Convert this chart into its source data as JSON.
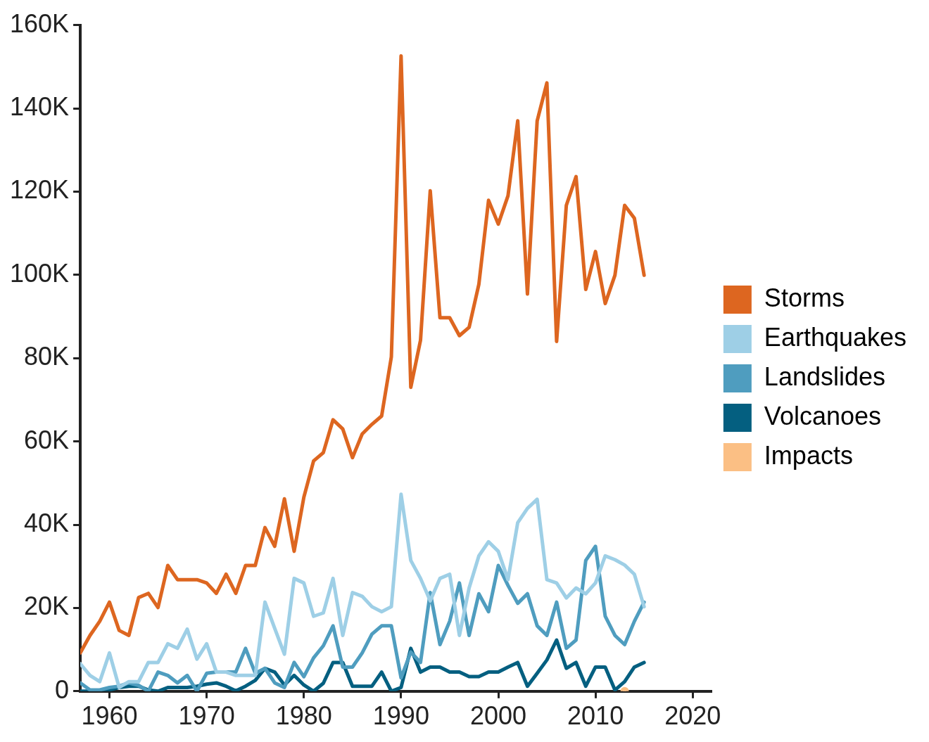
{
  "chart_data": {
    "type": "line",
    "x": [
      1957,
      1958,
      1959,
      1960,
      1961,
      1962,
      1963,
      1964,
      1965,
      1966,
      1967,
      1968,
      1969,
      1970,
      1971,
      1972,
      1973,
      1974,
      1975,
      1976,
      1977,
      1978,
      1979,
      1980,
      1981,
      1982,
      1983,
      1984,
      1985,
      1986,
      1987,
      1988,
      1989,
      1990,
      1991,
      1992,
      1993,
      1994,
      1995,
      1996,
      1997,
      1998,
      1999,
      2000,
      2001,
      2002,
      2003,
      2004,
      2005,
      2006,
      2007,
      2008,
      2009,
      2010,
      2011,
      2012,
      2013,
      2014,
      2015
    ],
    "series": [
      {
        "name": "Storms",
        "color": "#dd6620",
        "values": [
          9.2,
          13.4,
          16.8,
          21.4,
          14.6,
          13.4,
          22.5,
          23.5,
          20.1,
          30.2,
          26.8,
          26.8,
          26.8,
          26.0,
          23.5,
          28.1,
          23.5,
          30.2,
          30.2,
          39.3,
          34.8,
          46.2,
          33.6,
          46.6,
          55.3,
          57.3,
          65.2,
          63.0,
          56.1,
          61.8,
          64.1,
          66.1,
          80.3,
          152.6,
          73,
          84.3,
          120.2,
          89.7,
          89.7,
          85.4,
          87.4,
          97.7,
          117.9,
          112.2,
          119.0,
          137.0,
          95.4,
          137.0,
          146.1,
          84.0,
          116.7,
          123.6,
          96.5,
          105.6,
          93.1,
          99.9,
          116.7,
          113.6,
          99.9
        ]
      },
      {
        "name": "Earthquakes",
        "color": "#9ecfe6",
        "values": [
          6.6,
          3.8,
          2.3,
          9.2,
          0.9,
          2.3,
          2.3,
          6.9,
          6.9,
          11.4,
          10.3,
          14.9,
          7.7,
          11.4,
          4.6,
          4.6,
          3.8,
          3.8,
          3.8,
          21.4,
          15.1,
          8.9,
          27.1,
          26.0,
          18.0,
          18.8,
          27.1,
          13.4,
          23.7,
          22.8,
          20.3,
          19.1,
          20.3,
          47.3,
          31.4,
          27.1,
          21.7,
          27.1,
          28.1,
          13.4,
          24.8,
          32.5,
          35.9,
          33.6,
          26.8,
          40.5,
          43.9,
          46.1,
          26.8,
          26.0,
          22.4,
          24.8,
          23.4,
          26.0,
          32.5,
          31.6,
          30.3,
          28.1,
          20.3
        ]
      },
      {
        "name": "Landslides",
        "color": "#4f9dbf",
        "values": [
          2.0,
          0.3,
          0.3,
          0.9,
          1.2,
          2.0,
          1.4,
          0,
          4.6,
          3.8,
          2.0,
          3.8,
          0,
          4.3,
          4.6,
          4.6,
          4.6,
          10.3,
          4.3,
          5.5,
          2.0,
          0.9,
          6.9,
          3.5,
          8.0,
          10.9,
          15.7,
          5.8,
          5.8,
          9.2,
          13.7,
          15.7,
          15.7,
          3.2,
          9.4,
          6.9,
          23.7,
          11.2,
          16.8,
          26.0,
          13.4,
          23.4,
          19.1,
          30.2,
          25.4,
          21.1,
          23.4,
          15.7,
          13.4,
          21.4,
          10.3,
          12.3,
          31.4,
          34.8,
          18.0,
          13.4,
          11.2,
          16.8,
          21.4
        ]
      },
      {
        "name": "Volcanoes",
        "color": "#045f80",
        "values": [
          0,
          0,
          0,
          0.3,
          0.9,
          1.2,
          1.2,
          0.3,
          0,
          0.9,
          0.9,
          0.9,
          1.2,
          1.7,
          2.0,
          1.2,
          0.1,
          1.2,
          2.6,
          5.5,
          4.6,
          1.5,
          3.8,
          1.5,
          0,
          1.9,
          6.9,
          6.9,
          1.2,
          1.2,
          1.2,
          4.6,
          0,
          0.9,
          10.3,
          4.6,
          5.8,
          5.8,
          4.6,
          4.6,
          3.5,
          3.5,
          4.6,
          4.6,
          5.8,
          6.9,
          1.2,
          4.3,
          7.5,
          12.3,
          5.5,
          6.9,
          1.2,
          5.8,
          5.8,
          0.3,
          2.3,
          5.8,
          6.9
        ]
      },
      {
        "name": "Impacts",
        "color": "#fbbf84",
        "x": [
          2013
        ],
        "values": [
          0
        ],
        "marker": "circle"
      }
    ],
    "xlim": [
      1957,
      2022
    ],
    "xticks": [
      1960,
      1970,
      1980,
      1990,
      2000,
      2010,
      2020
    ],
    "ylim": [
      0,
      160
    ],
    "yticks": [
      {
        "value": 0,
        "label": "0"
      },
      {
        "value": 20,
        "label": "20K"
      },
      {
        "value": 40,
        "label": "40K"
      },
      {
        "value": 60,
        "label": "60K"
      },
      {
        "value": 80,
        "label": "80K"
      },
      {
        "value": 100,
        "label": "100K"
      },
      {
        "value": 120,
        "label": "120K"
      },
      {
        "value": 140,
        "label": "140K"
      },
      {
        "value": 160,
        "label": "160K"
      }
    ],
    "grid": false,
    "legend": "right",
    "marker": "none",
    "line_style": "solid"
  }
}
